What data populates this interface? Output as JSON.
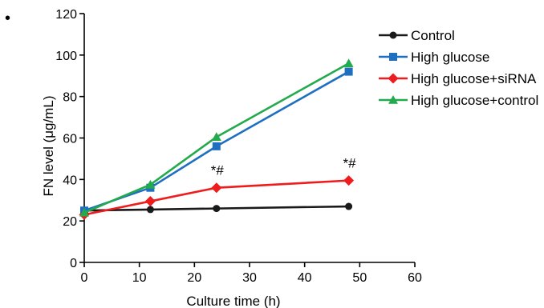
{
  "bullet": "•",
  "chart_data": {
    "type": "line",
    "xlabel": "Culture time (h)",
    "ylabel": "FN level (μg/mL)",
    "xlim": [
      0,
      60
    ],
    "ylim": [
      0,
      120
    ],
    "xticks": [
      0,
      10,
      20,
      30,
      40,
      50,
      60
    ],
    "yticks": [
      0,
      20,
      40,
      60,
      80,
      100,
      120
    ],
    "grid": false,
    "legend_position": "top-right",
    "series": [
      {
        "name": "Control",
        "color": "#1a1a1a",
        "marker": "circle",
        "x": [
          0,
          12,
          24,
          48
        ],
        "y": [
          25,
          25.5,
          26,
          27
        ]
      },
      {
        "name": "High glucose",
        "color": "#1f6fc0",
        "marker": "square",
        "x": [
          0,
          12,
          24,
          48
        ],
        "y": [
          25,
          36,
          56,
          92
        ]
      },
      {
        "name": "High glucose+siRNA",
        "color": "#ee1c1c",
        "marker": "diamond",
        "x": [
          0,
          12,
          24,
          48
        ],
        "y": [
          23,
          29.5,
          36,
          39.5
        ]
      },
      {
        "name": "High glucose+control",
        "color": "#22aa4c",
        "marker": "triangle",
        "x": [
          0,
          12,
          24,
          48
        ],
        "y": [
          24,
          37.5,
          60.5,
          96
        ]
      }
    ],
    "annotations": [
      {
        "text": "*#",
        "x": 24,
        "y": 36
      },
      {
        "text": "*#",
        "x": 48,
        "y": 39.5
      }
    ]
  }
}
